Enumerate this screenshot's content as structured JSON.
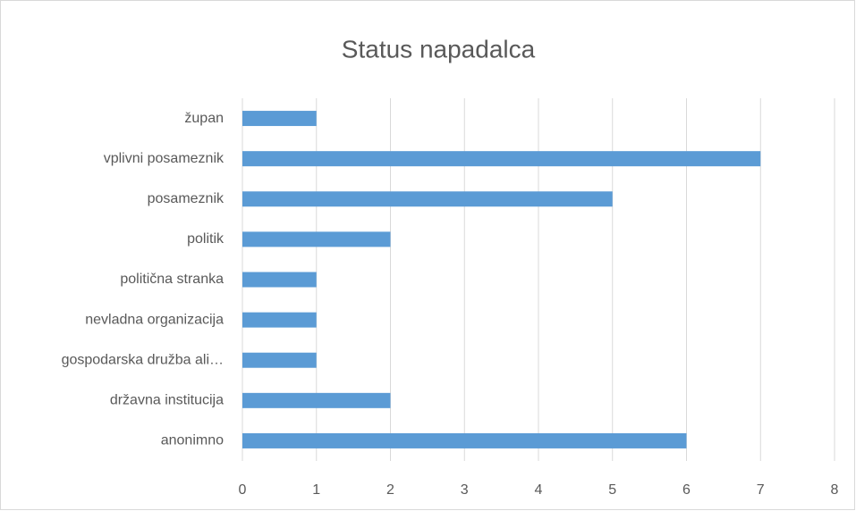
{
  "chart_data": {
    "type": "bar",
    "orientation": "horizontal",
    "title": "Status napadalca",
    "categories": [
      "župan",
      "vplivni posameznik",
      "posameznik",
      "politik",
      "politična stranka",
      "nevladna organizacija",
      "gospodarska družba ali…",
      "državna institucija",
      "anonimno"
    ],
    "values": [
      1,
      7,
      5,
      2,
      1,
      1,
      1,
      2,
      6
    ],
    "color": "#5b9bd5",
    "xlim": [
      0,
      8
    ],
    "xticks": [
      0,
      1,
      2,
      3,
      4,
      5,
      6,
      7,
      8
    ],
    "grid": true
  }
}
